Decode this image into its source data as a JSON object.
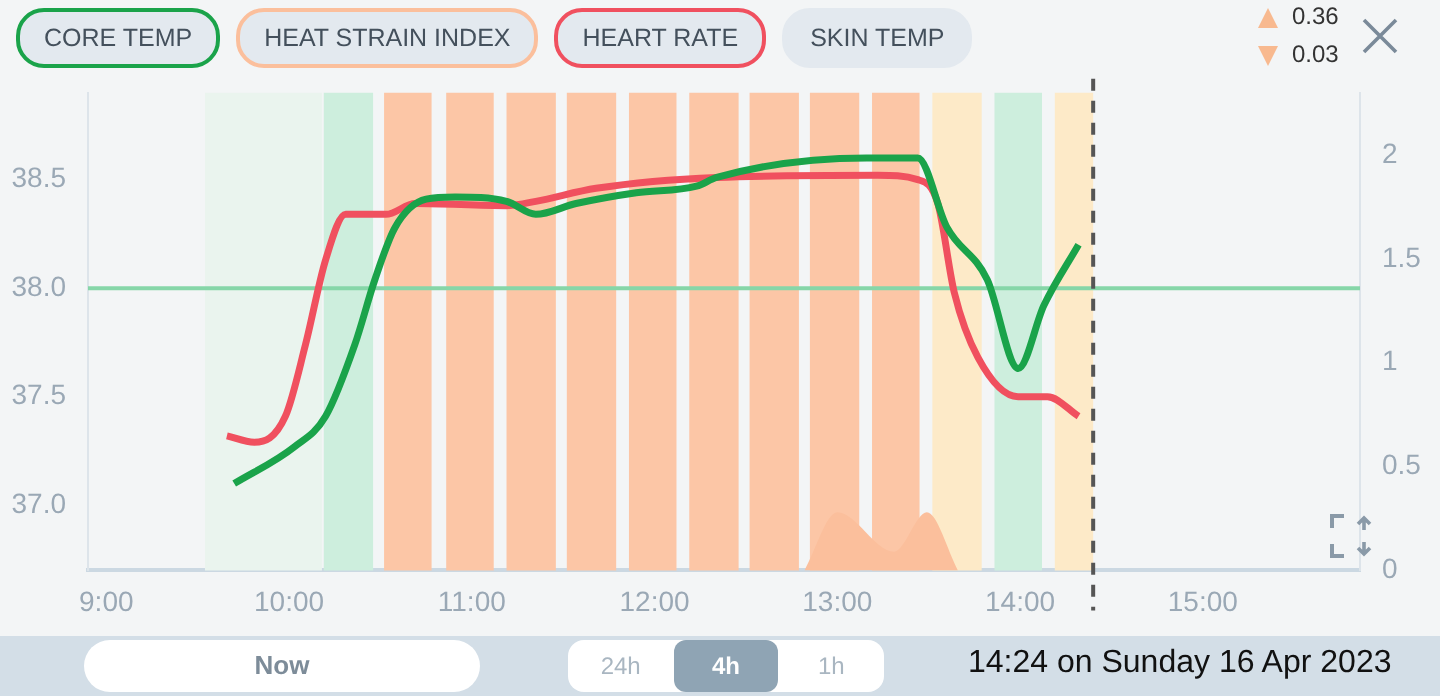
{
  "chart_data": {
    "type": "line",
    "legend": "top left",
    "xlim": [
      8.9,
      15.86
    ],
    "xticks": [
      {
        "value": 9,
        "label": "9:00"
      },
      {
        "value": 10,
        "label": "10:00"
      },
      {
        "value": 11,
        "label": "11:00"
      },
      {
        "value": 12,
        "label": "12:00"
      },
      {
        "value": 13,
        "label": "13:00"
      },
      {
        "value": 14,
        "label": "14:00"
      },
      {
        "value": 15,
        "label": "15:00"
      }
    ],
    "ylim": [
      36.7,
      38.9
    ],
    "yticks": [
      {
        "value": 37,
        "label": "37.0"
      },
      {
        "value": 37.5,
        "label": "37.5"
      },
      {
        "value": 38,
        "label": "38.0"
      },
      {
        "value": 38.5,
        "label": "38.5"
      }
    ],
    "y2lim": [
      0,
      2.3
    ],
    "y2ticks": [
      0,
      0.5,
      1,
      1.5,
      2
    ],
    "grid": false,
    "marker": "none",
    "line_style": "solid",
    "series": [
      {
        "name": "CORE TEMP",
        "color": "#1aa34a",
        "x": [
          9.7,
          10.03,
          10.2,
          10.36,
          10.47,
          10.58,
          10.75,
          10.91,
          11.19,
          11.35,
          11.57,
          11.9,
          12.23,
          12.34,
          13.16,
          13.44,
          13.6,
          13.82,
          13.99,
          14.13,
          14.32
        ],
        "values": [
          37.1,
          37.27,
          37.41,
          37.74,
          38.04,
          38.28,
          38.41,
          38.42,
          38.4,
          38.34,
          38.39,
          38.44,
          38.47,
          38.51,
          38.6,
          38.6,
          38.28,
          38.04,
          37.63,
          37.92,
          38.2
        ]
      },
      {
        "name": "HEAT STRAIN INDEX",
        "type": "area",
        "axis": "y2",
        "color": "#fbbf9c",
        "x": [
          12.82,
          13.0,
          13.31,
          13.49,
          13.66
        ],
        "values": [
          0,
          0.28,
          0.09,
          0.28,
          0
        ]
      },
      {
        "name": "HEART RATE",
        "color": "#f0505f",
        "x": [
          9.66,
          9.81,
          9.98,
          10.09,
          10.2,
          10.31,
          10.53,
          10.69,
          11.19,
          11.35,
          11.68,
          12.34,
          13.22,
          13.44,
          13.55,
          13.64,
          13.77,
          13.99,
          14.15,
          14.32
        ],
        "values": [
          37.32,
          37.29,
          37.41,
          37.74,
          38.13,
          38.34,
          38.34,
          38.39,
          38.38,
          38.4,
          38.46,
          38.51,
          38.52,
          38.5,
          38.39,
          37.98,
          37.68,
          37.5,
          37.5,
          37.41
        ]
      }
    ],
    "bands": [
      {
        "axis": "x",
        "from": 9.54,
        "to": 10.18,
        "color": "#eaf4ee"
      },
      {
        "axis": "x",
        "from": 10.19,
        "to": 10.46,
        "color": "#cdeedd"
      },
      {
        "axis": "x",
        "from": 10.52,
        "to": 10.78,
        "color": "#fcc6a6"
      },
      {
        "axis": "x",
        "from": 10.86,
        "to": 11.12,
        "color": "#fcc6a6"
      },
      {
        "axis": "x",
        "from": 11.19,
        "to": 11.46,
        "color": "#fcc6a6"
      },
      {
        "axis": "x",
        "from": 11.52,
        "to": 11.79,
        "color": "#fcc6a6"
      },
      {
        "axis": "x",
        "from": 11.86,
        "to": 12.12,
        "color": "#fcc6a6"
      },
      {
        "axis": "x",
        "from": 12.19,
        "to": 12.46,
        "color": "#fcc6a6"
      },
      {
        "axis": "x",
        "from": 12.52,
        "to": 12.79,
        "color": "#fcc6a6"
      },
      {
        "axis": "x",
        "from": 12.85,
        "to": 13.12,
        "color": "#fcc6a6"
      },
      {
        "axis": "x",
        "from": 13.19,
        "to": 13.45,
        "color": "#fcc6a6"
      },
      {
        "axis": "x",
        "from": 13.52,
        "to": 13.79,
        "color": "#fdeac8"
      },
      {
        "axis": "x",
        "from": 13.86,
        "to": 14.12,
        "color": "#cdeedd"
      },
      {
        "axis": "x",
        "from": 14.19,
        "to": 14.4,
        "color": "#fdeac8"
      }
    ],
    "ref_lines": [
      {
        "axis": "y",
        "value": 38,
        "color": "#86d6a8",
        "line_style": "solid"
      },
      {
        "axis": "x",
        "value": 14.4,
        "color": "#555555",
        "line_style": "dashed"
      }
    ],
    "annotations": [
      "SKIN TEMP",
      "0.36",
      "0.03",
      "Now",
      "24h",
      "4h",
      "1h",
      "14:24 on Sunday 16 Apr 2023"
    ]
  }
}
